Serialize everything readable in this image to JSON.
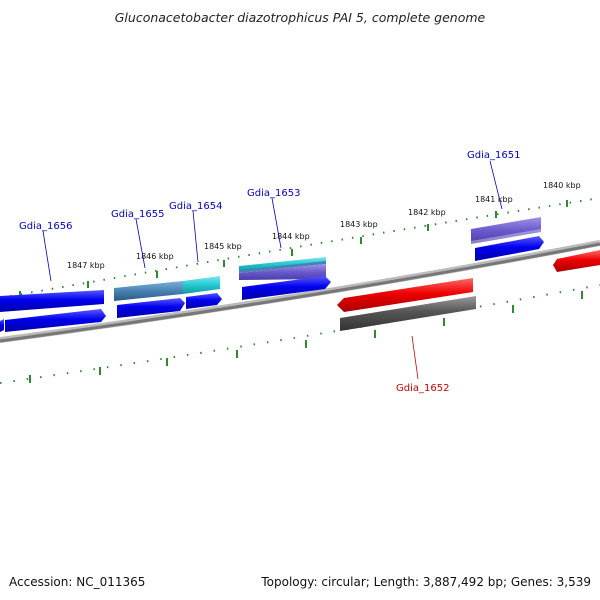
{
  "title": "Gluconacetobacter diazotrophicus PAI 5, complete genome",
  "footer": {
    "accession": "Accession: NC_011365",
    "summary": "Topology: circular; Length: 3,887,492 bp; Genes: 3,539"
  },
  "scale_labels": [
    "1840 kbp",
    "1841 kbp",
    "1842 kbp",
    "1843 kbp",
    "1844 kbp",
    "1845 kbp",
    "1846 kbp",
    "1847 kbp"
  ],
  "gene_labels": [
    {
      "text": "Gdia_1651",
      "color": "#0000cc"
    },
    {
      "text": "Gdia_1652",
      "color": "#cc0000"
    },
    {
      "text": "Gdia_1653",
      "color": "#0000cc"
    },
    {
      "text": "Gdia_1654",
      "color": "#0000cc"
    },
    {
      "text": "Gdia_1655",
      "color": "#0000cc"
    },
    {
      "text": "Gdia_1656",
      "color": "#0000cc"
    }
  ],
  "colors": {
    "forward_cds": "#0000ee",
    "reverse_cds": "#ee0000",
    "gene_grey": "#555555",
    "cyan": "#22c8d0",
    "violet": "#6a5acd",
    "steel": "#4682b4",
    "tick_green": "#228b22",
    "backbone": "#888888"
  }
}
